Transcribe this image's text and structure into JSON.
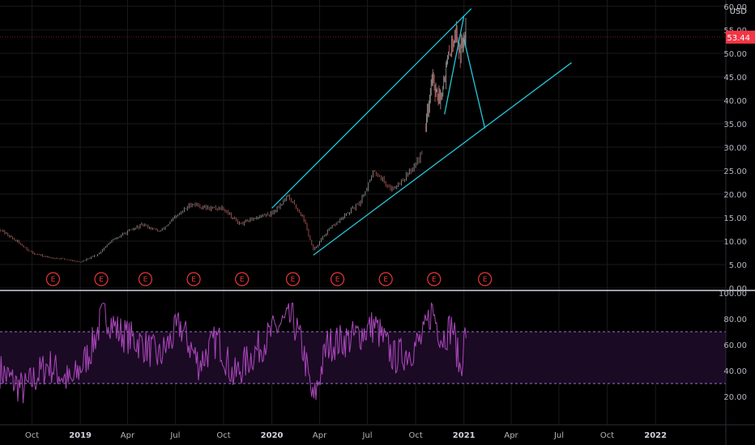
{
  "chart_data": [
    {
      "type": "candlestick",
      "panel": "price",
      "y_axis_unit": "USD",
      "ylim": [
        0,
        61
      ],
      "y_ticks": [
        "0.00",
        "5.00",
        "10.00",
        "15.00",
        "20.00",
        "25.00",
        "30.00",
        "35.00",
        "40.00",
        "45.00",
        "50.00",
        "55.00",
        "60.00"
      ],
      "last_price_label": "53.44",
      "last_price_value": 53.44,
      "last_price_color": "#f23645",
      "earnings_markers": {
        "label": "E",
        "dates": [
          "2018-11-10",
          "2019-02-10",
          "2019-05-05",
          "2019-08-05",
          "2019-11-05",
          "2020-02-10",
          "2020-05-05",
          "2020-08-05",
          "2020-11-05",
          "2021-02-10"
        ]
      },
      "series": [
        {
          "name": "",
          "kind": "close_path",
          "x": [
            "2018-08-01",
            "2018-09-01",
            "2018-10-01",
            "2018-11-01",
            "2018-12-01",
            "2019-01-01",
            "2019-02-01",
            "2019-03-01",
            "2019-04-01",
            "2019-05-01",
            "2019-06-01",
            "2019-07-01",
            "2019-08-01",
            "2019-09-01",
            "2019-10-01",
            "2019-11-01",
            "2019-12-01",
            "2020-01-01",
            "2020-02-01",
            "2020-03-01",
            "2020-03-20",
            "2020-04-15",
            "2020-05-15",
            "2020-06-15",
            "2020-07-15",
            "2020-08-15",
            "2020-09-15",
            "2020-10-15"
          ],
          "y": [
            12.5,
            10,
            7.5,
            6.5,
            6.2,
            5.5,
            7,
            10,
            12,
            13.5,
            12,
            15,
            18,
            17,
            17,
            13.5,
            15,
            16,
            19.5,
            15,
            8,
            12,
            15,
            18,
            25,
            21,
            24,
            29
          ]
        },
        {
          "name": "",
          "kind": "close_path",
          "x": [
            "2020-10-20",
            "2020-11-01",
            "2020-11-15",
            "2020-12-01",
            "2020-12-15",
            "2020-12-25",
            "2021-01-05"
          ],
          "y": [
            35,
            45,
            40,
            48,
            55,
            50,
            57
          ]
        }
      ],
      "trendlines": [
        {
          "x": [
            "2020-01-01",
            "2021-01-15"
          ],
          "y": [
            17,
            59.5
          ],
          "color": "#26c6da"
        },
        {
          "x": [
            "2020-03-20",
            "2021-07-25"
          ],
          "y": [
            7,
            48
          ],
          "color": "#26c6da"
        },
        {
          "x": [
            "2020-11-25",
            "2021-01-01"
          ],
          "y": [
            37,
            58
          ],
          "color": "#26c6da"
        },
        {
          "x": [
            "2021-01-01",
            "2021-02-10"
          ],
          "y": [
            53,
            34
          ],
          "color": "#26c6da"
        }
      ],
      "x_range": [
        "2018-08-01",
        "2022-05-15"
      ]
    },
    {
      "type": "line",
      "panel": "rsi",
      "ylim": [
        0,
        100
      ],
      "y_ticks": [
        "20.00",
        "40.00",
        "60.00",
        "80.00",
        "100.00"
      ],
      "band": [
        30,
        70
      ],
      "series_color": "#ab47bc",
      "x_ticks": [
        "Oct",
        "2019",
        "Apr",
        "Jul",
        "Oct",
        "2020",
        "Apr",
        "Jul",
        "Oct",
        "2021",
        "Apr",
        "Jul",
        "Oct",
        "2022"
      ],
      "x_tick_dates": [
        "2018-10-01",
        "2019-01-01",
        "2019-04-01",
        "2019-07-01",
        "2019-10-01",
        "2020-01-01",
        "2020-04-01",
        "2020-07-01",
        "2020-10-01",
        "2021-01-01",
        "2021-04-01",
        "2021-07-01",
        "2021-10-01",
        "2022-01-01"
      ],
      "series": [
        {
          "name": "",
          "x": [
            "2018-08-01",
            "2018-09-15",
            "2018-11-01",
            "2018-12-15",
            "2019-01-20",
            "2019-02-15",
            "2019-03-15",
            "2019-05-01",
            "2019-06-01",
            "2019-07-10",
            "2019-08-15",
            "2019-09-20",
            "2019-10-20",
            "2019-12-01",
            "2020-01-15",
            "2020-02-10",
            "2020-03-01",
            "2020-03-20",
            "2020-04-15",
            "2020-06-01",
            "2020-07-15",
            "2020-08-20",
            "2020-09-20",
            "2020-10-15",
            "2020-11-01",
            "2020-11-20",
            "2020-12-10",
            "2020-12-25",
            "2021-01-05"
          ],
          "y": [
            40,
            25,
            45,
            30,
            55,
            85,
            70,
            60,
            50,
            75,
            45,
            65,
            35,
            55,
            75,
            80,
            55,
            15,
            60,
            65,
            75,
            50,
            55,
            65,
            88,
            65,
            75,
            40,
            72
          ]
        }
      ]
    }
  ]
}
